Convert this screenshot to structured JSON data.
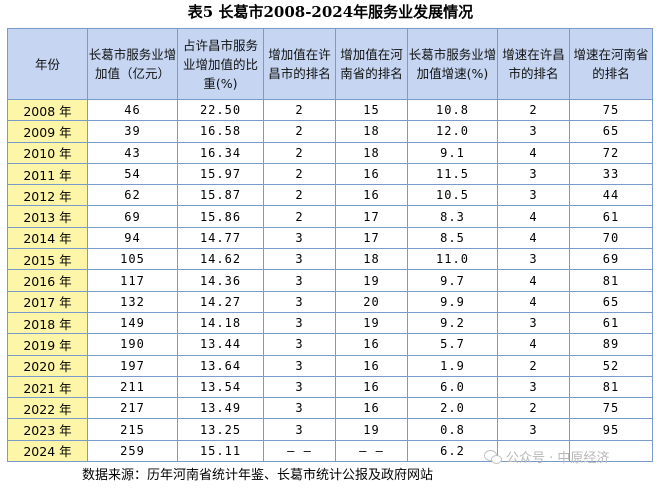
{
  "title": "表5 长葛市2008-2024年服务业发展情况",
  "headers": [
    "年份",
    "长葛市服务业增加值（亿元）",
    "占许昌市服务业增加值的比重(%)",
    "增加值在许昌市的排名",
    "增加值在河南省的排名",
    "长葛市服务业增加值增速(%)",
    "增速在许昌市的排名",
    "增速在河南省的排名"
  ],
  "rows": [
    [
      "2008 年",
      "46",
      "22.50",
      "2",
      "15",
      "10.8",
      "2",
      "75"
    ],
    [
      "2009 年",
      "39",
      "16.58",
      "2",
      "18",
      "12.0",
      "3",
      "65"
    ],
    [
      "2010 年",
      "43",
      "16.34",
      "2",
      "18",
      "9.1",
      "4",
      "72"
    ],
    [
      "2011 年",
      "54",
      "15.97",
      "2",
      "16",
      "11.5",
      "3",
      "33"
    ],
    [
      "2012 年",
      "62",
      "15.87",
      "2",
      "16",
      "10.5",
      "3",
      "44"
    ],
    [
      "2013 年",
      "69",
      "15.86",
      "2",
      "17",
      "8.3",
      "4",
      "61"
    ],
    [
      "2014 年",
      "94",
      "14.77",
      "3",
      "17",
      "8.5",
      "4",
      "70"
    ],
    [
      "2015 年",
      "105",
      "14.62",
      "3",
      "18",
      "11.0",
      "3",
      "69"
    ],
    [
      "2016 年",
      "117",
      "14.36",
      "3",
      "19",
      "9.7",
      "4",
      "81"
    ],
    [
      "2017 年",
      "132",
      "14.27",
      "3",
      "20",
      "9.9",
      "4",
      "65"
    ],
    [
      "2018 年",
      "149",
      "14.18",
      "3",
      "19",
      "9.2",
      "3",
      "61"
    ],
    [
      "2019 年",
      "190",
      "13.44",
      "3",
      "16",
      "5.7",
      "4",
      "89"
    ],
    [
      "2020 年",
      "197",
      "13.64",
      "3",
      "16",
      "1.9",
      "2",
      "52"
    ],
    [
      "2021 年",
      "211",
      "13.54",
      "3",
      "16",
      "6.0",
      "3",
      "81"
    ],
    [
      "2022 年",
      "217",
      "13.49",
      "3",
      "16",
      "2.0",
      "2",
      "75"
    ],
    [
      "2023 年",
      "215",
      "13.25",
      "3",
      "19",
      "0.8",
      "3",
      "95"
    ],
    [
      "2024 年",
      "259",
      "15.11",
      "— —",
      "— —",
      "6.2",
      "",
      ""
    ]
  ],
  "source": "数据来源：历年河南省统计年鉴、长葛市统计公报及政府网站",
  "watermark": {
    "icon": "wechat-icon",
    "text": "公众号 · 中原经济"
  }
}
